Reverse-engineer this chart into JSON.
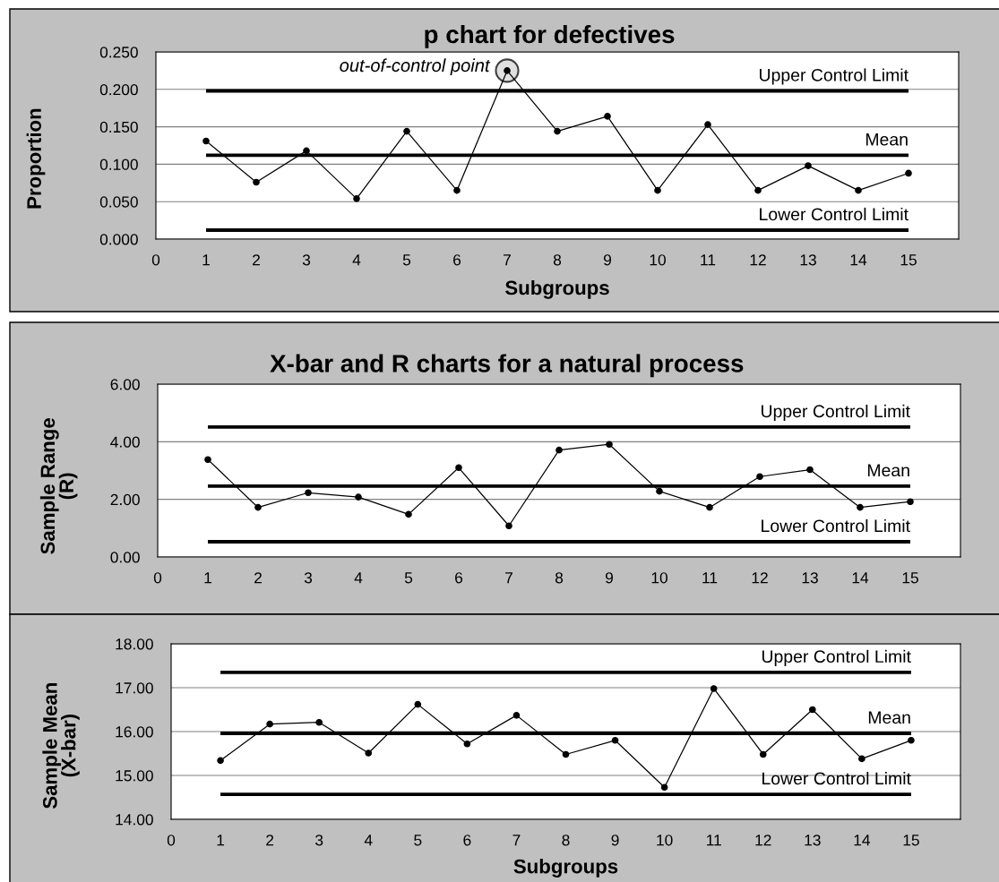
{
  "chart_data": [
    {
      "type": "line",
      "title": "p chart for defectives",
      "xlabel": "Subgroups",
      "ylabel": "Proportion",
      "x": [
        1,
        2,
        3,
        4,
        5,
        6,
        7,
        8,
        9,
        10,
        11,
        12,
        13,
        14,
        15
      ],
      "series": [
        {
          "color": "#000000",
          "values": [
            0.131,
            0.076,
            0.118,
            0.054,
            0.144,
            0.065,
            0.225,
            0.144,
            0.164,
            0.065,
            0.153,
            0.065,
            0.098,
            0.065,
            0.088
          ]
        }
      ],
      "xlim": [
        0,
        16
      ],
      "xticks": [
        0,
        1,
        2,
        3,
        4,
        5,
        6,
        7,
        8,
        9,
        10,
        11,
        12,
        13,
        14,
        15
      ],
      "ylim": [
        0,
        0.25
      ],
      "yticks": [
        {
          "value": 0,
          "label": "0.000"
        },
        {
          "value": 0.05,
          "label": "0.050"
        },
        {
          "value": 0.1,
          "label": "0.100"
        },
        {
          "value": 0.15,
          "label": "0.150"
        },
        {
          "value": 0.2,
          "label": "0.200"
        },
        {
          "value": 0.25,
          "label": "0.250"
        }
      ],
      "grid": "y",
      "marker": "circle",
      "line_style": "solid",
      "ref_lines": [
        {
          "axis": "y",
          "value": 0.198,
          "label": "Upper Control Limit",
          "color": "#000000"
        },
        {
          "axis": "y",
          "value": 0.112,
          "label": "Mean",
          "color": "#000000"
        },
        {
          "axis": "y",
          "value": 0.012,
          "label": "Lower Control Limit",
          "color": "#000000"
        }
      ],
      "annotations": [
        {
          "text": "out-of-control point",
          "x": 7,
          "y": 0.225
        }
      ]
    },
    {
      "type": "line",
      "title": "X-bar and R charts for a natural process",
      "ylabel": "Sample Range\n(R)",
      "x": [
        1,
        2,
        3,
        4,
        5,
        6,
        7,
        8,
        9,
        10,
        11,
        12,
        13,
        14,
        15
      ],
      "series": [
        {
          "color": "#000000",
          "values": [
            3.38,
            1.72,
            2.23,
            2.08,
            1.48,
            3.1,
            1.08,
            3.71,
            3.91,
            2.28,
            1.72,
            2.79,
            3.03,
            1.72,
            1.92
          ]
        }
      ],
      "xlim": [
        0,
        16
      ],
      "xticks": [
        0,
        1,
        2,
        3,
        4,
        5,
        6,
        7,
        8,
        9,
        10,
        11,
        12,
        13,
        14,
        15
      ],
      "ylim": [
        0,
        6
      ],
      "yticks": [
        {
          "value": 0,
          "label": "0.00"
        },
        {
          "value": 2,
          "label": "2.00"
        },
        {
          "value": 4,
          "label": "4.00"
        },
        {
          "value": 6,
          "label": "6.00"
        }
      ],
      "grid": "y",
      "marker": "circle",
      "line_style": "solid",
      "ref_lines": [
        {
          "axis": "y",
          "value": 4.51,
          "label": "Upper Control Limit",
          "color": "#000000"
        },
        {
          "axis": "y",
          "value": 2.46,
          "label": "Mean",
          "color": "#000000"
        },
        {
          "axis": "y",
          "value": 0.53,
          "label": "Lower Control Limit",
          "color": "#000000"
        }
      ]
    },
    {
      "type": "line",
      "xlabel": "Subgroups",
      "ylabel": "Sample Mean\n(X-bar)",
      "x": [
        1,
        2,
        3,
        4,
        5,
        6,
        7,
        8,
        9,
        10,
        11,
        12,
        13,
        14,
        15
      ],
      "series": [
        {
          "color": "#000000",
          "values": [
            15.34,
            16.17,
            16.21,
            15.51,
            16.62,
            15.72,
            16.37,
            15.48,
            15.8,
            14.73,
            16.98,
            15.48,
            16.5,
            15.38,
            15.8
          ]
        }
      ],
      "xlim": [
        0,
        16
      ],
      "xticks": [
        0,
        1,
        2,
        3,
        4,
        5,
        6,
        7,
        8,
        9,
        10,
        11,
        12,
        13,
        14,
        15
      ],
      "ylim": [
        14,
        18
      ],
      "yticks": [
        {
          "value": 14,
          "label": "14.00"
        },
        {
          "value": 15,
          "label": "15.00"
        },
        {
          "value": 16,
          "label": "16.00"
        },
        {
          "value": 17,
          "label": "17.00"
        },
        {
          "value": 18,
          "label": "18.00"
        }
      ],
      "grid": "y",
      "marker": "circle",
      "line_style": "solid",
      "ref_lines": [
        {
          "axis": "y",
          "value": 17.35,
          "label": "Upper Control Limit",
          "color": "#000000"
        },
        {
          "axis": "y",
          "value": 15.96,
          "label": "Mean",
          "color": "#000000"
        },
        {
          "axis": "y",
          "value": 14.57,
          "label": "Lower Control Limit",
          "color": "#000000"
        }
      ]
    }
  ]
}
